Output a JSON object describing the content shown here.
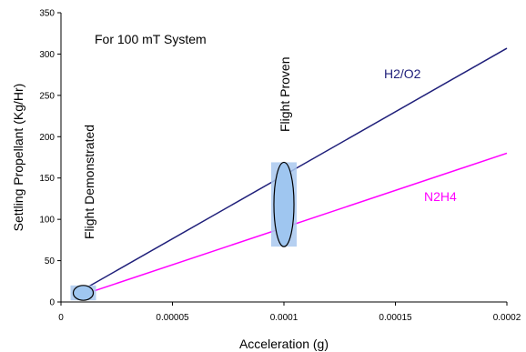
{
  "chart_data": {
    "type": "line",
    "xlabel": "Acceleration (g)",
    "ylabel": "Settling Propellant (Kg/Hr)",
    "xlim": [
      0,
      0.0002
    ],
    "ylim": [
      0,
      350
    ],
    "x_ticks": [
      "0",
      "0.00005",
      "0.0001",
      "0.00015",
      "0.0002"
    ],
    "y_ticks": [
      "0",
      "50",
      "100",
      "150",
      "200",
      "250",
      "300",
      "350"
    ],
    "x_tick_values": [
      0,
      5e-05,
      0.0001,
      0.00015,
      0.0002
    ],
    "y_tick_values": [
      0,
      50,
      100,
      150,
      200,
      250,
      300,
      350
    ],
    "grid": false,
    "series": [
      {
        "name": "H2/O2",
        "color": "#1f1f7a",
        "x": [
          1e-05,
          0.0002
        ],
        "y": [
          15,
          307
        ]
      },
      {
        "name": "N2H4",
        "color": "#ff00ff",
        "x": [
          1e-05,
          0.0002
        ],
        "y": [
          9,
          180
        ]
      }
    ],
    "annotations": [
      {
        "text": "For 100 mT System"
      },
      {
        "text": "Flight Demonstrated"
      },
      {
        "text": "Flight Proven"
      }
    ],
    "highlight_regions": [
      {
        "label": "Flight Demonstrated",
        "x": 1e-05,
        "y": 11,
        "x_halfwidth": 4.5e-06,
        "y_halfwidth": 9
      },
      {
        "label": "Flight Proven",
        "x": 0.0001,
        "y": 118,
        "x_halfwidth": 4.5e-06,
        "y_halfwidth": 51
      }
    ]
  }
}
